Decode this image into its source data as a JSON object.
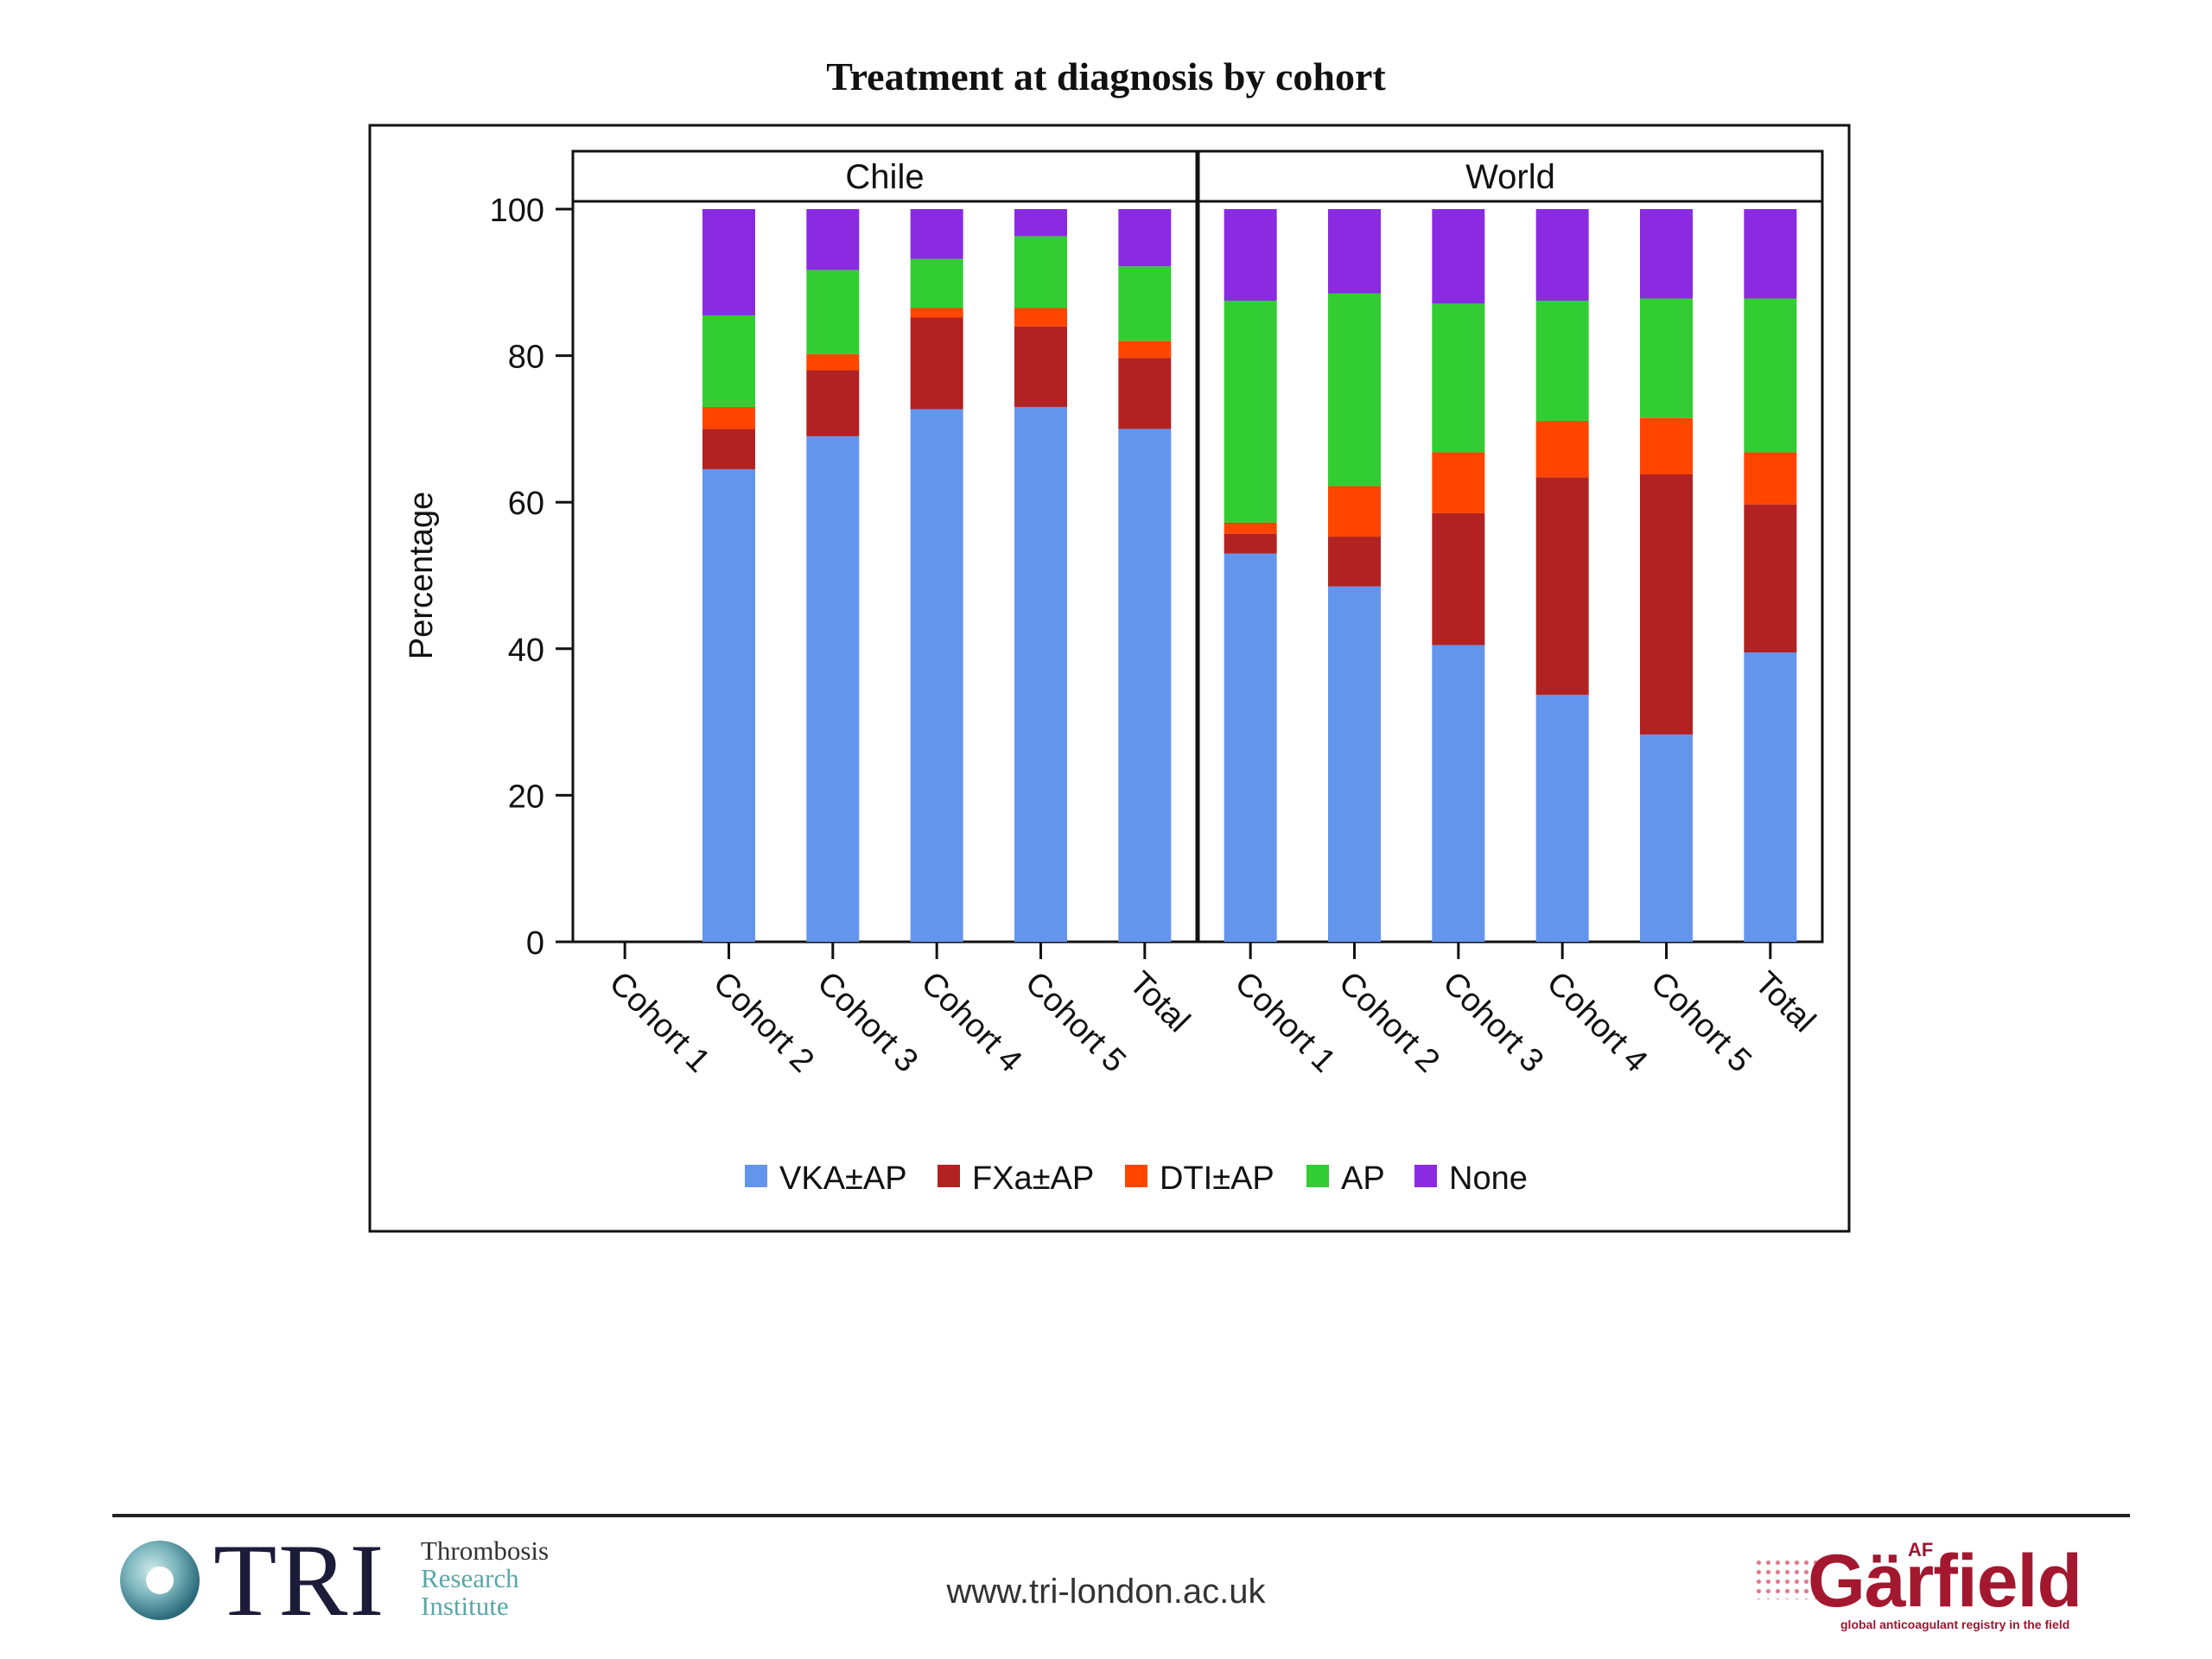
{
  "chart_data": {
    "type": "bar",
    "stacked": true,
    "title": "Treatment at diagnosis by cohort",
    "ylabel": "Percentage",
    "ylim": [
      0,
      100
    ],
    "yticks": [
      0,
      20,
      40,
      60,
      80,
      100
    ],
    "legend_position": "bottom",
    "grid": false,
    "legend": [
      {
        "name": "VKA±AP",
        "color": "#6495ED"
      },
      {
        "name": "FXa±AP",
        "color": "#B22222"
      },
      {
        "name": "DTI±AP",
        "color": "#FF4500"
      },
      {
        "name": "AP",
        "color": "#32CD32"
      },
      {
        "name": "None",
        "color": "#8A2BE2"
      }
    ],
    "panels": [
      {
        "name": "Chile",
        "categories": [
          "Cohort 1",
          "Cohort 2",
          "Cohort 3",
          "Cohort 4",
          "Cohort 5",
          "Total"
        ],
        "series": [
          {
            "name": "VKA±AP",
            "values": [
              null,
              64.5,
              69,
              72.7,
              73,
              70
            ]
          },
          {
            "name": "FXa±AP",
            "values": [
              null,
              5.5,
              9,
              12.5,
              11,
              9.7
            ]
          },
          {
            "name": "DTI±AP",
            "values": [
              null,
              3,
              2.2,
              1.3,
              2.5,
              2.3
            ]
          },
          {
            "name": "AP",
            "values": [
              null,
              12.5,
              11.5,
              6.7,
              9.8,
              10.2
            ]
          },
          {
            "name": "None",
            "values": [
              null,
              14.5,
              8.3,
              6.8,
              3.7,
              7.8
            ]
          }
        ]
      },
      {
        "name": "World",
        "categories": [
          "Cohort 1",
          "Cohort 2",
          "Cohort 3",
          "Cohort 4",
          "Cohort 5",
          "Total"
        ],
        "series": [
          {
            "name": "VKA±AP",
            "values": [
              53,
              48.5,
              40.5,
              33.7,
              28.3,
              39.5
            ]
          },
          {
            "name": "FXa±AP",
            "values": [
              2.7,
              6.8,
              18,
              29.7,
              35.5,
              20.2
            ]
          },
          {
            "name": "DTI±AP",
            "values": [
              1.5,
              6.9,
              8.3,
              7.7,
              7.7,
              7.1
            ]
          },
          {
            "name": "AP",
            "values": [
              30.3,
              26.3,
              20.3,
              16.4,
              16.3,
              21
            ]
          },
          {
            "name": "None",
            "values": [
              12.5,
              11.5,
              12.9,
              12.5,
              12.2,
              12.2
            ]
          }
        ]
      }
    ]
  },
  "footer": {
    "tri_logo": {
      "text": "TRI",
      "subtitle_lines": [
        "Thrombosis",
        "Research",
        "Institute"
      ]
    },
    "url": "www.tri-london.ac.uk",
    "garfield_logo": {
      "prefix": "AF",
      "name": "Gärfield",
      "tagline": "global anticoagulant registry in the field"
    }
  }
}
